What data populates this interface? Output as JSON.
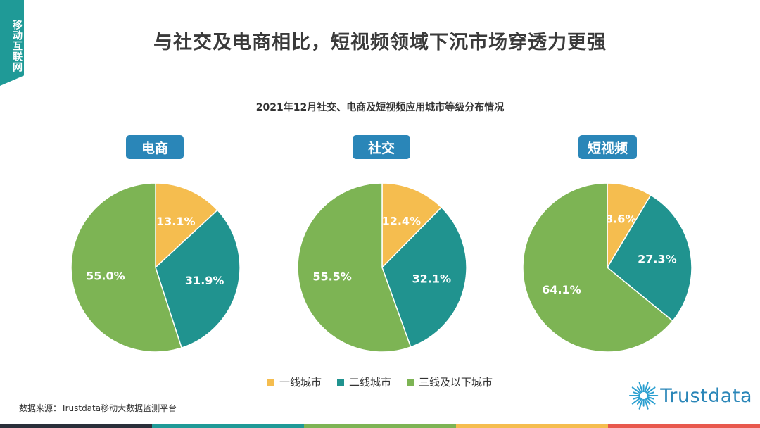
{
  "corner_tag": "移动互联网",
  "page_title": "与社交及电商相比，短视频领域下沉市场穿透力更强",
  "chart_title": "2021年12月社交、电商及短视频应用城市等级分布情况",
  "colors": {
    "tier1": "#f5bd4f",
    "tier2": "#20938f",
    "tier3": "#7db454",
    "pill": "#2a86b8",
    "brand": "#1f9a97"
  },
  "legend": [
    {
      "label": "一线城市",
      "color": "#f5bd4f"
    },
    {
      "label": "二线城市",
      "color": "#20938f"
    },
    {
      "label": "三线及以下城市",
      "color": "#7db454"
    }
  ],
  "chart_data": [
    {
      "type": "pie",
      "title": "电商",
      "categories": [
        "一线城市",
        "二线城市",
        "三线及以下城市"
      ],
      "values": [
        13.1,
        31.9,
        55.0
      ],
      "labels": [
        "13.1%",
        "31.9%",
        "55.0%"
      ]
    },
    {
      "type": "pie",
      "title": "社交",
      "categories": [
        "一线城市",
        "二线城市",
        "三线及以下城市"
      ],
      "values": [
        12.4,
        32.1,
        55.5
      ],
      "labels": [
        "12.4%",
        "32.1%",
        "55.5%"
      ]
    },
    {
      "type": "pie",
      "title": "短视频",
      "categories": [
        "一线城市",
        "二线城市",
        "三线及以下城市"
      ],
      "values": [
        8.6,
        27.3,
        64.1
      ],
      "labels": [
        "8.6%",
        "27.3%",
        "64.1%"
      ]
    }
  ],
  "source": "数据来源：Trustdata移动大数据监测平台",
  "logo_text": "Trustdata",
  "bottom_bar_colors": [
    "#2a2f3a",
    "#1f9a97",
    "#7db454",
    "#f5bd4f",
    "#e8584d"
  ]
}
